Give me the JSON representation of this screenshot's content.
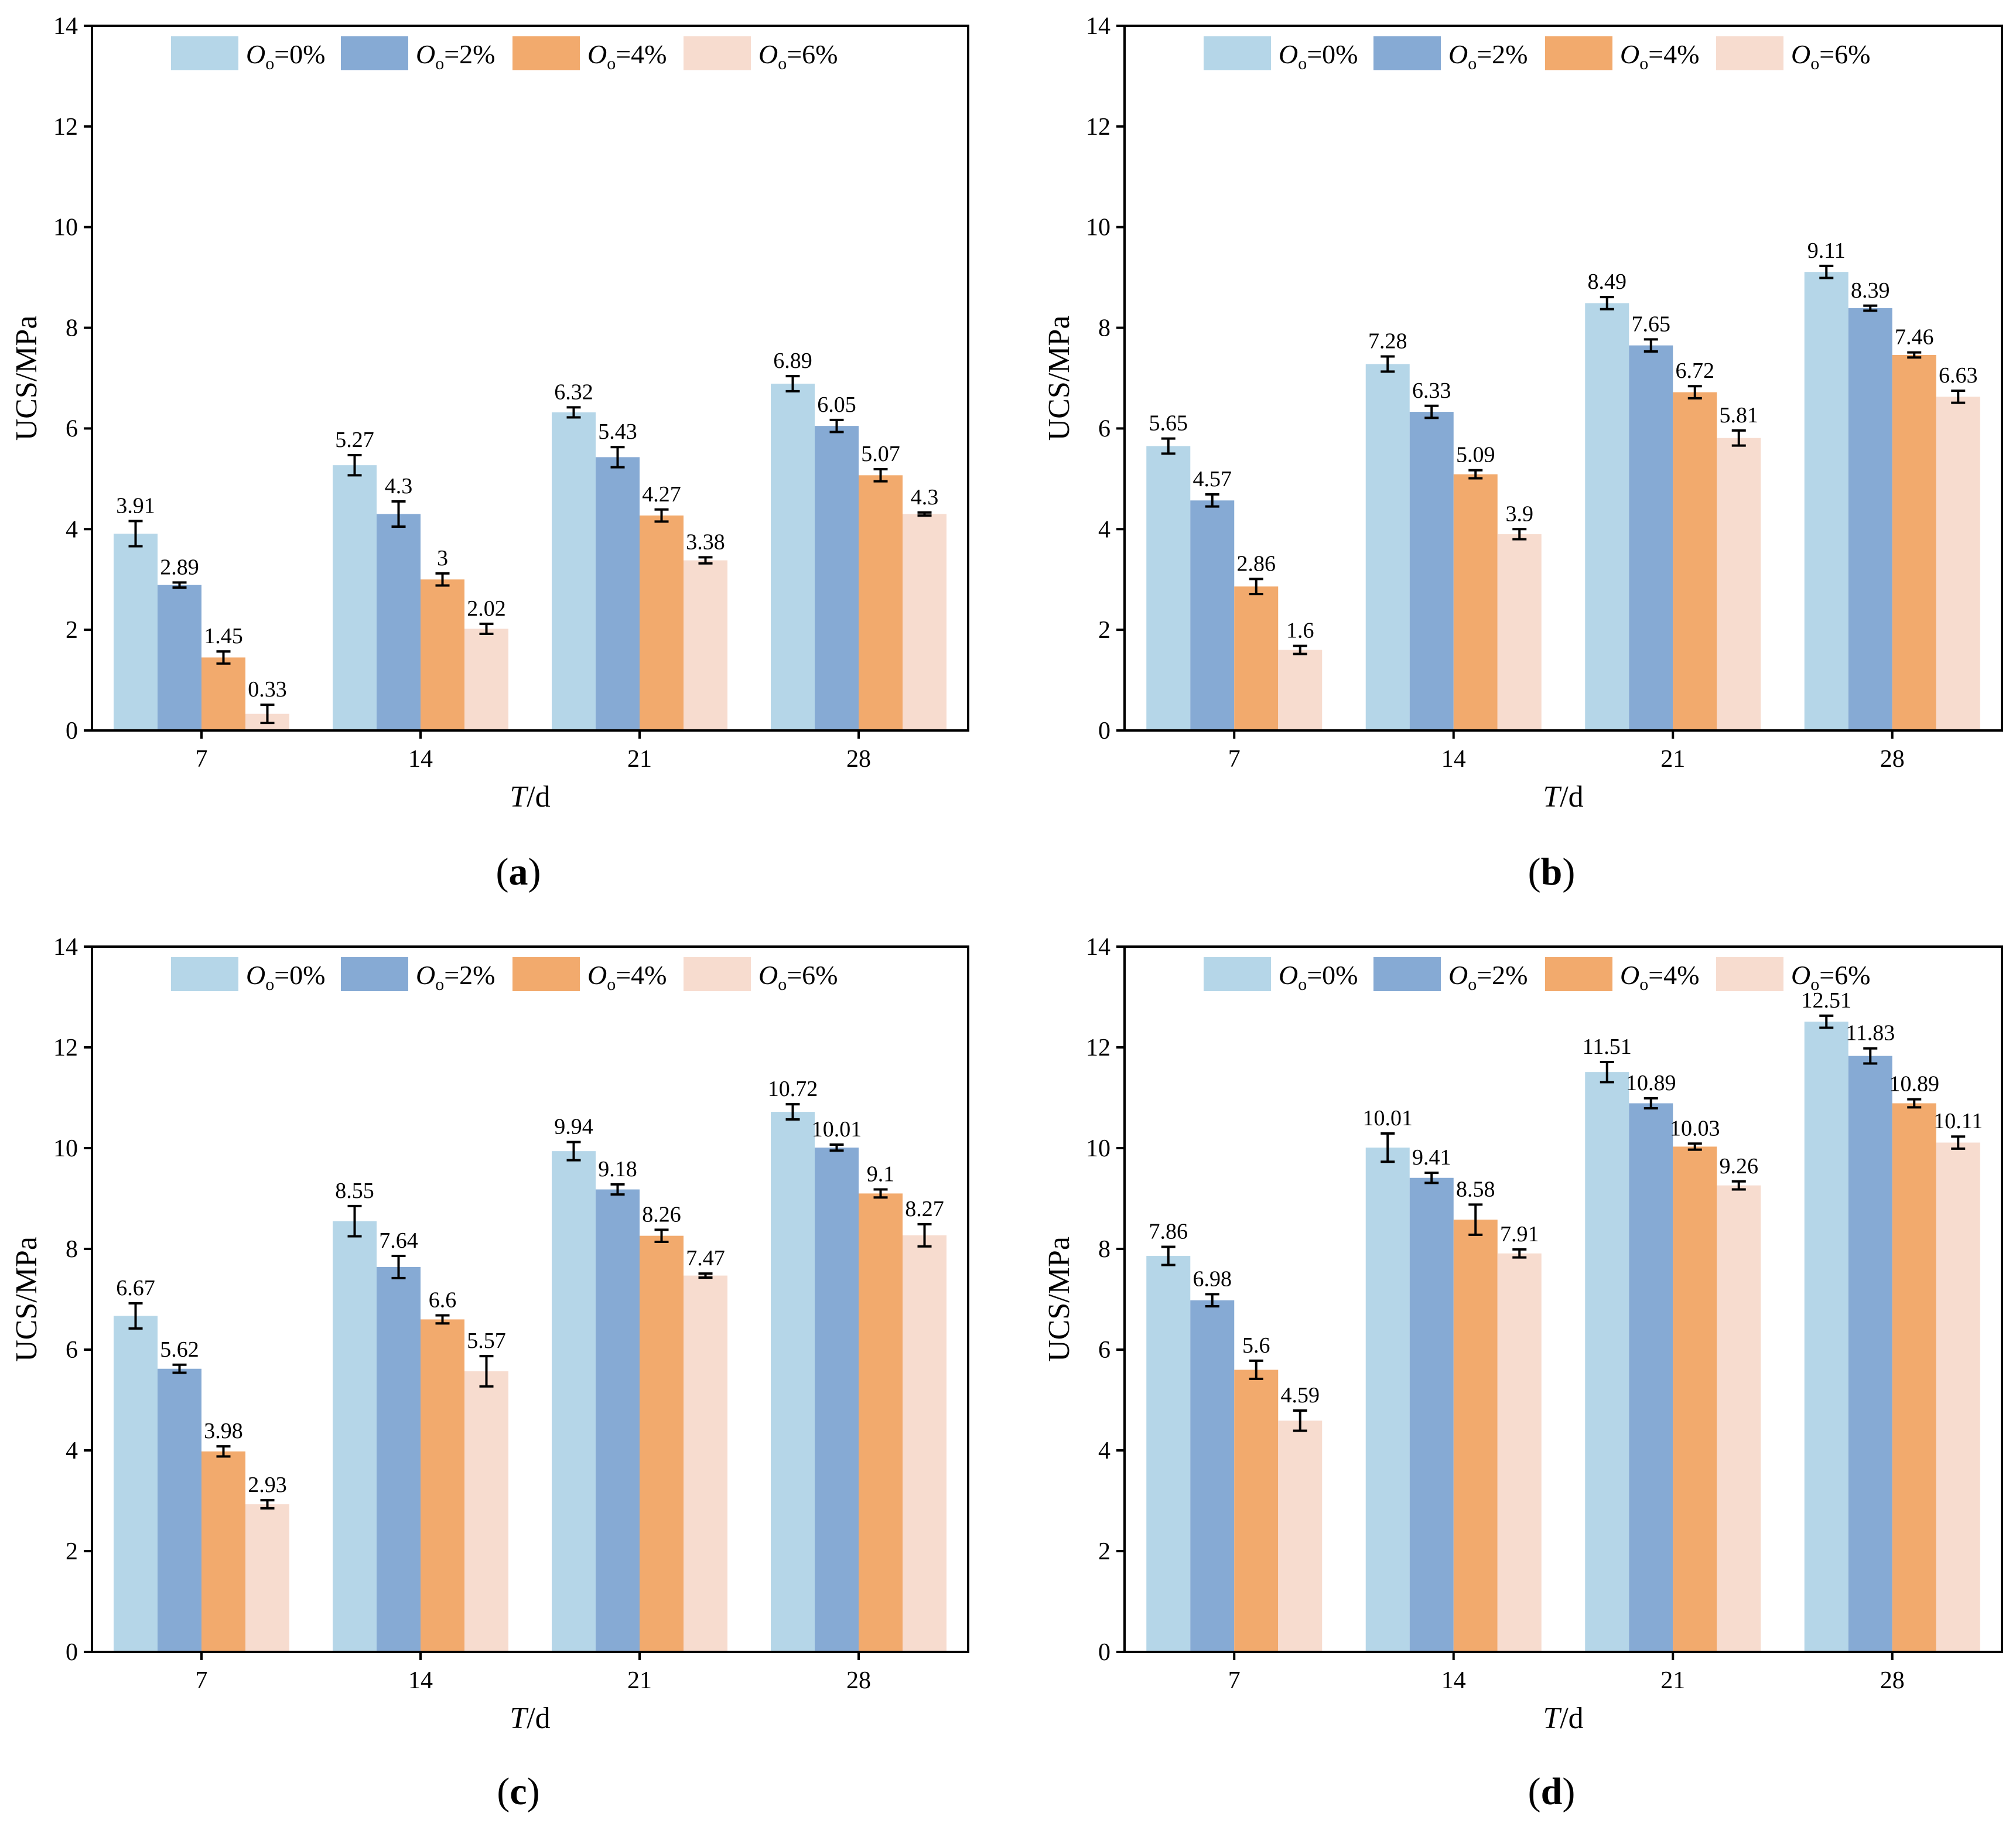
{
  "colors": {
    "series": [
      "#b5d6e8",
      "#86aad4",
      "#f2aa6d",
      "#f7dccf"
    ],
    "axis": "#000000"
  },
  "chart_data": [
    {
      "panel": "a",
      "type": "bar",
      "caption_letter": "a",
      "xlabel_italic": "T",
      "xlabel_unit": "/d",
      "ylabel": "UCS/MPa",
      "ylim": [
        0,
        14
      ],
      "yticks": [
        0,
        2,
        4,
        6,
        8,
        10,
        12,
        14
      ],
      "categories": [
        "7",
        "14",
        "21",
        "28"
      ],
      "series": [
        {
          "name_italic": "O",
          "name_sub": "o",
          "name_value": "=0%",
          "values": [
            3.91,
            5.27,
            6.32,
            6.89
          ],
          "labels": [
            "3.91",
            "5.27",
            "6.32",
            "6.89"
          ],
          "errors": [
            0.25,
            0.2,
            0.1,
            0.15
          ]
        },
        {
          "name_italic": "O",
          "name_sub": "o",
          "name_value": "=2%",
          "values": [
            2.89,
            4.3,
            5.43,
            6.05
          ],
          "labels": [
            "2.89",
            "4.3",
            "5.43",
            "6.05"
          ],
          "errors": [
            0.05,
            0.25,
            0.2,
            0.12
          ]
        },
        {
          "name_italic": "O",
          "name_sub": "o",
          "name_value": "=4%",
          "values": [
            1.45,
            3.0,
            4.27,
            5.07
          ],
          "labels": [
            "1.45",
            "3",
            "4.27",
            "5.07"
          ],
          "errors": [
            0.12,
            0.12,
            0.12,
            0.12
          ]
        },
        {
          "name_italic": "O",
          "name_sub": "o",
          "name_value": "=6%",
          "values": [
            0.33,
            2.02,
            3.38,
            4.3
          ],
          "labels": [
            "0.33",
            "2.02",
            "3.38",
            "4.3"
          ],
          "errors": [
            0.18,
            0.1,
            0.06,
            0.03
          ]
        }
      ]
    },
    {
      "panel": "b",
      "type": "bar",
      "caption_letter": "b",
      "xlabel_italic": "T",
      "xlabel_unit": "/d",
      "ylabel": "UCS/MPa",
      "ylim": [
        0,
        14
      ],
      "yticks": [
        0,
        2,
        4,
        6,
        8,
        10,
        12,
        14
      ],
      "categories": [
        "7",
        "14",
        "21",
        "28"
      ],
      "series": [
        {
          "name_italic": "O",
          "name_sub": "o",
          "name_value": "=0%",
          "values": [
            5.65,
            7.28,
            8.49,
            9.11
          ],
          "labels": [
            "5.65",
            "7.28",
            "8.49",
            "9.11"
          ],
          "errors": [
            0.15,
            0.15,
            0.12,
            0.12
          ]
        },
        {
          "name_italic": "O",
          "name_sub": "o",
          "name_value": "=2%",
          "values": [
            4.57,
            6.33,
            7.65,
            8.39
          ],
          "labels": [
            "4.57",
            "6.33",
            "7.65",
            "8.39"
          ],
          "errors": [
            0.12,
            0.12,
            0.12,
            0.05
          ]
        },
        {
          "name_italic": "O",
          "name_sub": "o",
          "name_value": "=4%",
          "values": [
            2.86,
            5.09,
            6.72,
            7.46
          ],
          "labels": [
            "2.86",
            "5.09",
            "6.72",
            "7.46"
          ],
          "errors": [
            0.15,
            0.08,
            0.12,
            0.05
          ]
        },
        {
          "name_italic": "O",
          "name_sub": "o",
          "name_value": "=6%",
          "values": [
            1.6,
            3.9,
            5.81,
            6.63
          ],
          "labels": [
            "1.6",
            "3.9",
            "5.81",
            "6.63"
          ],
          "errors": [
            0.08,
            0.1,
            0.15,
            0.12
          ]
        }
      ]
    },
    {
      "panel": "c",
      "type": "bar",
      "caption_letter": "c",
      "xlabel_italic": "T",
      "xlabel_unit": "/d",
      "ylabel": "UCS/MPa",
      "ylim": [
        0,
        14
      ],
      "yticks": [
        0,
        2,
        4,
        6,
        8,
        10,
        12,
        14
      ],
      "categories": [
        "7",
        "14",
        "21",
        "28"
      ],
      "series": [
        {
          "name_italic": "O",
          "name_sub": "o",
          "name_value": "=0%",
          "values": [
            6.67,
            8.55,
            9.94,
            10.72
          ],
          "labels": [
            "6.67",
            "8.55",
            "9.94",
            "10.72"
          ],
          "errors": [
            0.25,
            0.3,
            0.18,
            0.15
          ]
        },
        {
          "name_italic": "O",
          "name_sub": "o",
          "name_value": "=2%",
          "values": [
            5.62,
            7.64,
            9.18,
            10.01
          ],
          "labels": [
            "5.62",
            "7.64",
            "9.18",
            "10.01"
          ],
          "errors": [
            0.08,
            0.22,
            0.1,
            0.06
          ]
        },
        {
          "name_italic": "O",
          "name_sub": "o",
          "name_value": "=4%",
          "values": [
            3.98,
            6.6,
            8.26,
            9.1
          ],
          "labels": [
            "3.98",
            "6.6",
            "8.26",
            "9.1"
          ],
          "errors": [
            0.1,
            0.08,
            0.12,
            0.08
          ]
        },
        {
          "name_italic": "O",
          "name_sub": "o",
          "name_value": "=6%",
          "values": [
            2.93,
            5.57,
            7.47,
            8.27
          ],
          "labels": [
            "2.93",
            "5.57",
            "7.47",
            "8.27"
          ],
          "errors": [
            0.08,
            0.3,
            0.04,
            0.22
          ]
        }
      ]
    },
    {
      "panel": "d",
      "type": "bar",
      "caption_letter": "d",
      "xlabel_italic": "T",
      "xlabel_unit": "/d",
      "ylabel": "UCS/MPa",
      "ylim": [
        0,
        14
      ],
      "yticks": [
        0,
        2,
        4,
        6,
        8,
        10,
        12,
        14
      ],
      "categories": [
        "7",
        "14",
        "21",
        "28"
      ],
      "series": [
        {
          "name_italic": "O",
          "name_sub": "o",
          "name_value": "=0%",
          "values": [
            7.86,
            10.01,
            11.51,
            12.51
          ],
          "labels": [
            "7.86",
            "10.01",
            "11.51",
            "12.51"
          ],
          "errors": [
            0.18,
            0.28,
            0.2,
            0.12
          ]
        },
        {
          "name_italic": "O",
          "name_sub": "o",
          "name_value": "=2%",
          "values": [
            6.98,
            9.41,
            10.89,
            11.83
          ],
          "labels": [
            "6.98",
            "9.41",
            "10.89",
            "11.83"
          ],
          "errors": [
            0.12,
            0.1,
            0.1,
            0.15
          ]
        },
        {
          "name_italic": "O",
          "name_sub": "o",
          "name_value": "=4%",
          "values": [
            5.6,
            8.58,
            10.03,
            10.89
          ],
          "labels": [
            "5.6",
            "8.58",
            "10.03",
            "10.89"
          ],
          "errors": [
            0.18,
            0.3,
            0.06,
            0.08
          ]
        },
        {
          "name_italic": "O",
          "name_sub": "o",
          "name_value": "=6%",
          "values": [
            4.59,
            7.91,
            9.26,
            10.11
          ],
          "labels": [
            "4.59",
            "7.91",
            "9.26",
            "10.11"
          ],
          "errors": [
            0.2,
            0.08,
            0.08,
            0.12
          ]
        }
      ]
    }
  ]
}
